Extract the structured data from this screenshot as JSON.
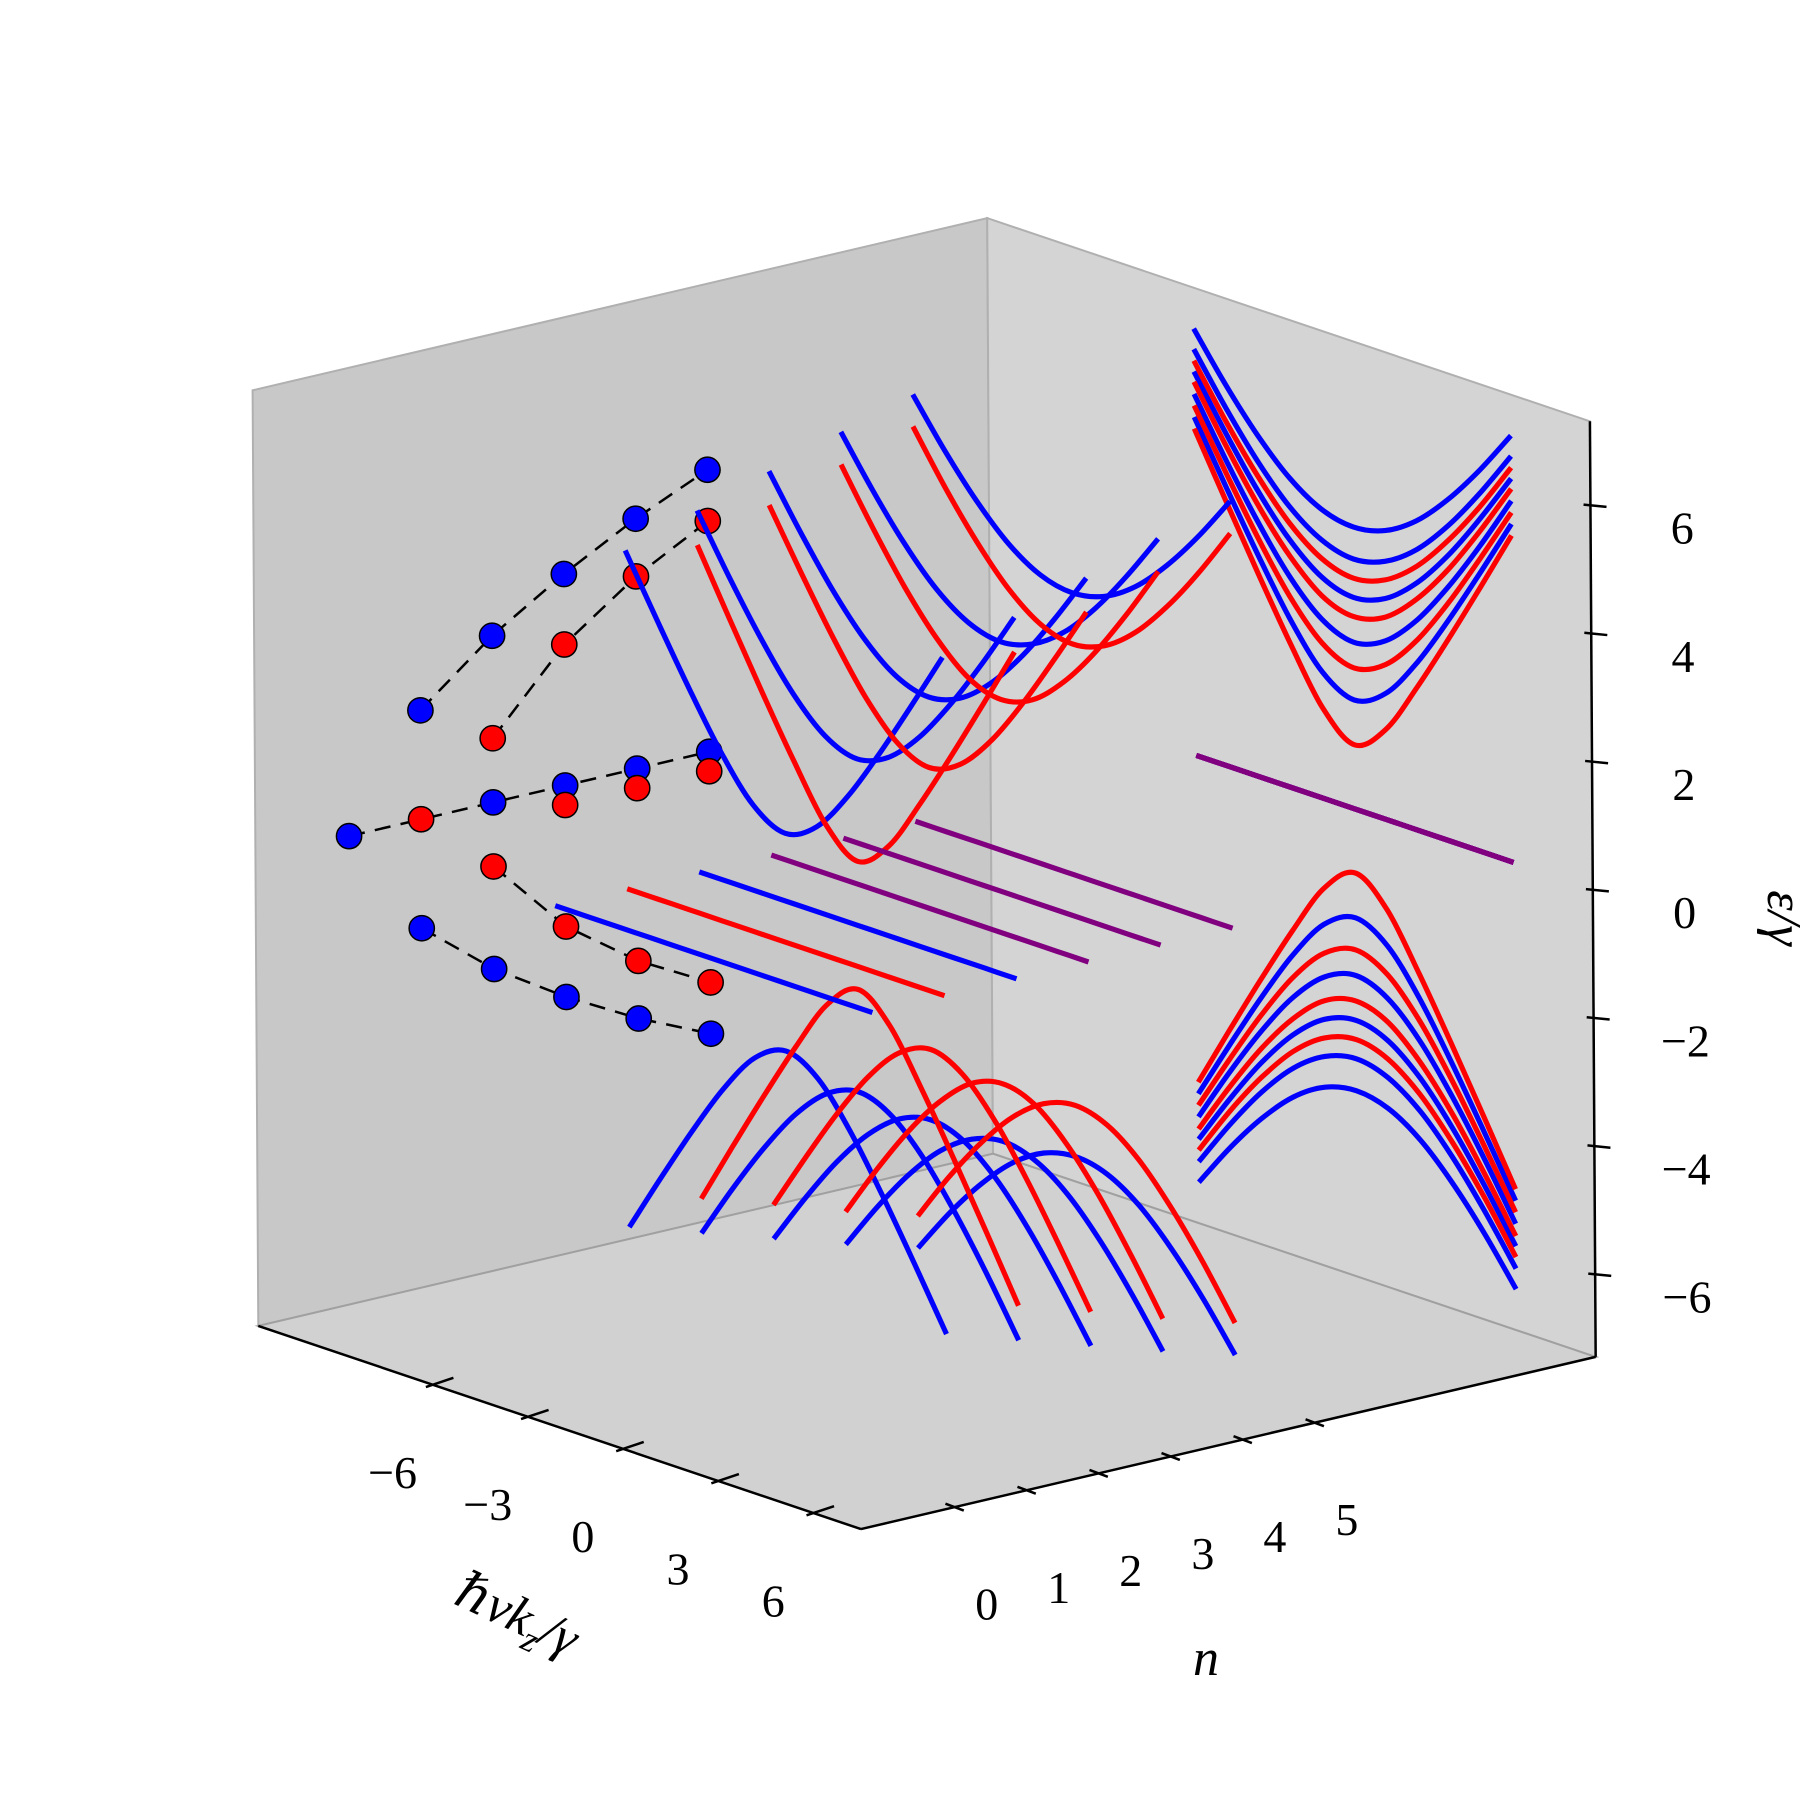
{
  "chart_data": {
    "type": "line3d",
    "xlabel": [
      "ℏvk",
      "z",
      "/γ"
    ],
    "ylabel": "n",
    "zlabel": "ε/γ",
    "xlim": [
      -11.5,
      7.5
    ],
    "ylim": [
      -1.3,
      8.9
    ],
    "zlim": [
      -7.3,
      7.3
    ],
    "xticks": [
      {
        "value": -6,
        "label": "−6"
      },
      {
        "value": -3,
        "label": "−3"
      },
      0,
      3,
      6
    ],
    "yticks": [
      0,
      1,
      2,
      3,
      4,
      5
    ],
    "zticks": [
      {
        "value": -6,
        "label": "−6"
      },
      {
        "value": -4,
        "label": "−4"
      },
      {
        "value": -2,
        "label": "−2"
      },
      0,
      2,
      4,
      6
    ],
    "x": [
      -5,
      -4,
      -3,
      -2,
      -1,
      0,
      1,
      2,
      3,
      4,
      5
    ],
    "series": [
      {
        "n": 1,
        "color": "#0000ff",
        "values": [
          5.28,
          4.35,
          3.45,
          2.62,
          1.97,
          1.7,
          1.97,
          2.62,
          3.45,
          4.35,
          5.28
        ]
      },
      {
        "n": 2,
        "color": "#0000ff",
        "values": [
          5.64,
          4.77,
          3.97,
          3.28,
          2.79,
          2.6,
          2.79,
          3.28,
          3.97,
          4.77,
          5.64
        ]
      },
      {
        "n": 3,
        "color": "#0000ff",
        "values": [
          5.99,
          5.19,
          4.46,
          3.86,
          3.45,
          3.3,
          3.45,
          3.86,
          4.46,
          5.19,
          5.99
        ]
      },
      {
        "n": 4,
        "color": "#0000ff",
        "values": [
          6.34,
          5.59,
          4.92,
          4.38,
          4.03,
          3.9,
          4.03,
          4.38,
          4.92,
          5.59,
          6.34
        ]
      },
      {
        "n": 5,
        "color": "#0000ff",
        "values": [
          6.66,
          5.95,
          5.33,
          4.83,
          4.51,
          4.4,
          4.51,
          4.83,
          5.33,
          5.95,
          6.66
        ]
      },
      {
        "n": 2,
        "color": "#ff0000",
        "values": [
          5.1,
          4.12,
          3.16,
          2.24,
          1.41,
          1,
          1.41,
          2.24,
          3.16,
          4.12,
          5.1
        ]
      },
      {
        "n": 3,
        "color": "#ff0000",
        "values": [
          5.46,
          4.57,
          3.72,
          2.97,
          2.42,
          2.2,
          2.42,
          2.97,
          3.72,
          4.57,
          5.46
        ]
      },
      {
        "n": 4,
        "color": "#ff0000",
        "values": [
          5.83,
          5,
          4.24,
          3.61,
          3.16,
          3,
          3.16,
          3.61,
          4.24,
          5,
          5.83
        ]
      },
      {
        "n": 5,
        "color": "#ff0000",
        "values": [
          6.16,
          5.38,
          4.69,
          4.12,
          3.74,
          3.6,
          3.74,
          4.12,
          4.69,
          5.38,
          6.16
        ]
      },
      {
        "n": 1,
        "color": "#0000ff",
        "values": [
          -5.28,
          -4.35,
          -3.45,
          -2.62,
          -1.97,
          -1.7,
          -1.97,
          -2.62,
          -3.45,
          -4.35,
          -5.28
        ]
      },
      {
        "n": 2,
        "color": "#0000ff",
        "values": [
          -5.64,
          -4.77,
          -3.97,
          -3.28,
          -2.79,
          -2.6,
          -2.79,
          -3.28,
          -3.97,
          -4.77,
          -5.64
        ]
      },
      {
        "n": 3,
        "color": "#0000ff",
        "values": [
          -5.99,
          -5.19,
          -4.46,
          -3.86,
          -3.45,
          -3.3,
          -3.45,
          -3.86,
          -4.46,
          -5.19,
          -5.99
        ]
      },
      {
        "n": 4,
        "color": "#0000ff",
        "values": [
          -6.34,
          -5.59,
          -4.92,
          -4.38,
          -4.03,
          -3.9,
          -4.03,
          -4.38,
          -4.92,
          -5.59,
          -6.34
        ]
      },
      {
        "n": 5,
        "color": "#0000ff",
        "values": [
          -6.66,
          -5.95,
          -5.33,
          -4.83,
          -4.51,
          -4.4,
          -4.51,
          -4.83,
          -5.33,
          -5.95,
          -6.66
        ]
      },
      {
        "n": 2,
        "color": "#ff0000",
        "values": [
          -5.1,
          -4.12,
          -3.16,
          -2.24,
          -1.41,
          -1,
          -1.41,
          -2.24,
          -3.16,
          -4.12,
          -5.1
        ]
      },
      {
        "n": 3,
        "color": "#ff0000",
        "values": [
          -5.46,
          -4.57,
          -3.72,
          -2.97,
          -2.42,
          -2.2,
          -2.42,
          -2.97,
          -3.72,
          -4.57,
          -5.46
        ]
      },
      {
        "n": 4,
        "color": "#ff0000",
        "values": [
          -5.83,
          -5,
          -4.24,
          -3.61,
          -3.16,
          -3,
          -3.16,
          -3.61,
          -4.24,
          -5,
          -5.83
        ]
      },
      {
        "n": 5,
        "color": "#ff0000",
        "values": [
          -6.16,
          -5.38,
          -4.69,
          -4.12,
          -3.74,
          -3.6,
          -3.74,
          -4.12,
          -4.69,
          -5.38,
          -6.16
        ]
      },
      {
        "n": 0,
        "color": "#0000ff",
        "values": [
          0,
          0,
          0,
          0,
          0,
          0,
          0,
          0,
          0,
          0,
          0
        ]
      },
      {
        "n": 1,
        "color": "#ff0000",
        "values": [
          0,
          0,
          0,
          0,
          0,
          0,
          0,
          0,
          0,
          0,
          0
        ]
      },
      {
        "n": 2,
        "color": "#0000ff",
        "values": [
          0,
          0,
          0,
          0,
          0,
          0,
          0,
          0,
          0,
          0,
          0
        ]
      },
      {
        "n": 3,
        "color": "#800080",
        "dot_colors": [
          "#0000ff",
          "#ff0000"
        ],
        "values": [
          0,
          0,
          0,
          0,
          0,
          0,
          0,
          0,
          0,
          0,
          0
        ]
      },
      {
        "n": 4,
        "color": "#800080",
        "dot_colors": [
          "#0000ff",
          "#ff0000"
        ],
        "values": [
          0,
          0,
          0,
          0,
          0,
          0,
          0,
          0,
          0,
          0,
          0
        ]
      },
      {
        "n": 5,
        "color": "#800080",
        "dot_colors": [
          "#0000ff",
          "#ff0000"
        ],
        "values": [
          0,
          0,
          0,
          0,
          0,
          0,
          0,
          0,
          0,
          0,
          0
        ]
      }
    ]
  }
}
